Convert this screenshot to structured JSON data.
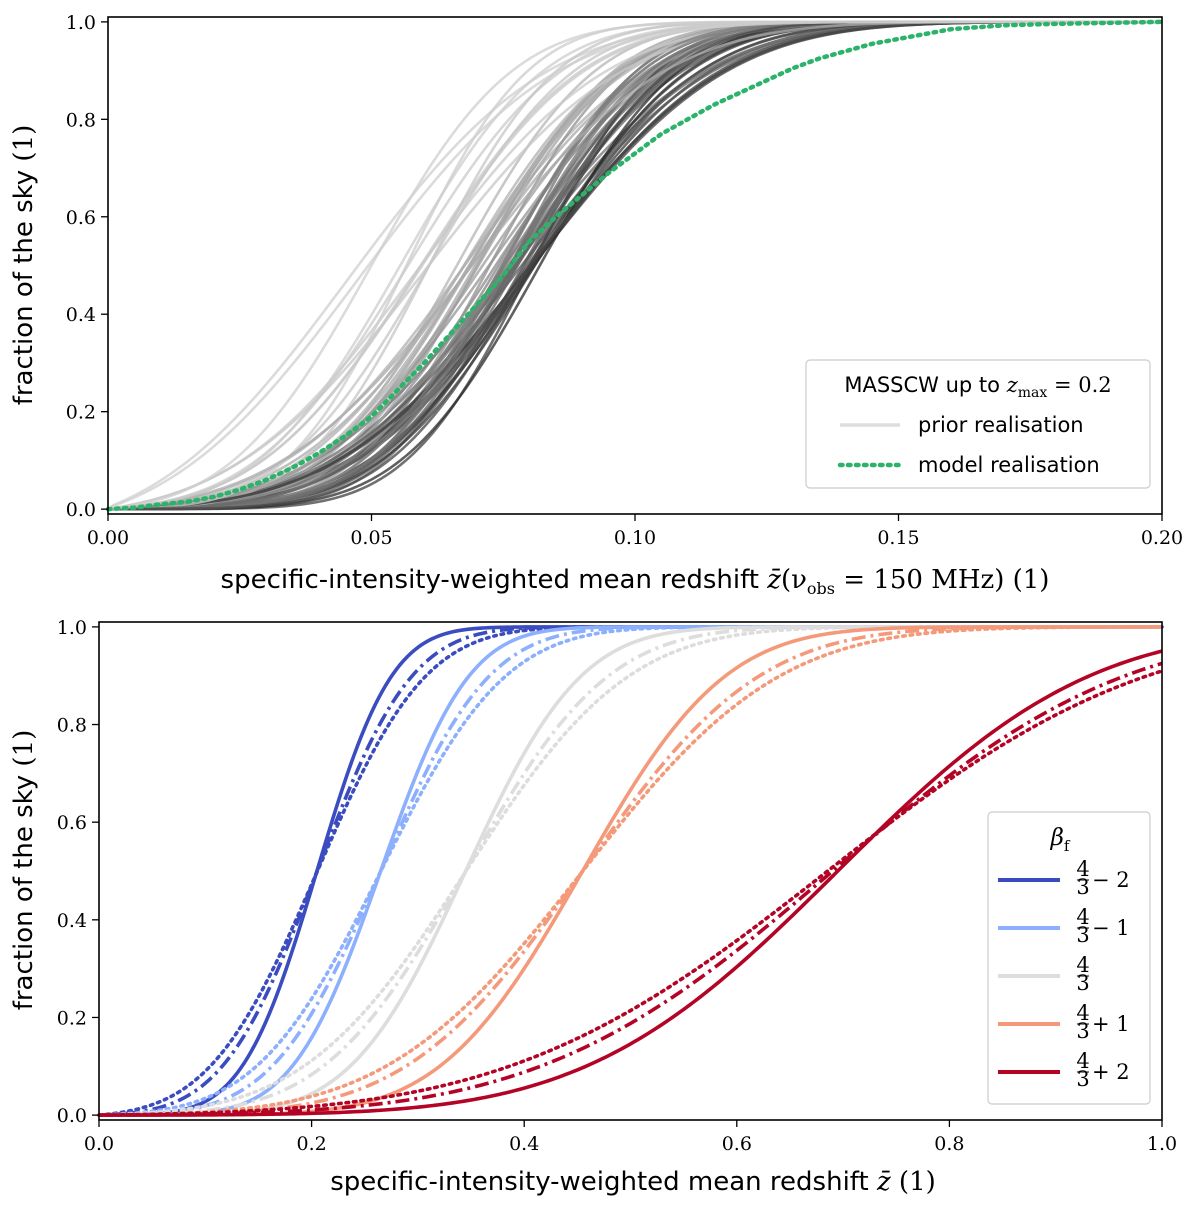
{
  "chart_data": [
    {
      "type": "line",
      "xlabel": {
        "prefix": "specific-intensity-weighted mean redshift",
        "symbol": "z̄",
        "argument": "(ν",
        "argument_sub": "obs",
        "argument_rest": " = 150 MHz)",
        "unit": "(1)"
      },
      "ylabel": {
        "text": "fraction of the sky",
        "unit": "(1)"
      },
      "xlim": [
        0.0,
        0.2
      ],
      "ylim": [
        -0.01,
        1.01
      ],
      "xticks": [
        "0.00",
        "0.05",
        "0.10",
        "0.15",
        "0.20"
      ],
      "xtick_values": [
        0.0,
        0.05,
        0.1,
        0.15,
        0.2
      ],
      "yticks": [
        "0.0",
        "0.2",
        "0.4",
        "0.6",
        "0.8",
        "1.0"
      ],
      "ytick_values": [
        0.0,
        0.2,
        0.4,
        0.6,
        0.8,
        1.0
      ],
      "legend": {
        "placement": "lower-right",
        "title_text": "MASSCW up to",
        "title_math_symbol": "z",
        "title_math_sub": "max",
        "title_math_rest": " = 0.2",
        "entries": [
          {
            "label": "prior realisation",
            "color": "#dddddd",
            "style": "solid"
          },
          {
            "label": "model realisation",
            "color": "#2bb36a",
            "style": "dotted"
          }
        ]
      },
      "prior_realisations": {
        "count": 60,
        "median_range": [
          0.045,
          0.082
        ],
        "spread_range": [
          0.018,
          0.03
        ],
        "color_light": "#cfcfcf",
        "color_dark": "#2a2a2a"
      },
      "model_realisation": {
        "color": "#2bb36a",
        "points": [
          [
            0.0,
            0.0
          ],
          [
            0.005,
            0.003
          ],
          [
            0.01,
            0.01
          ],
          [
            0.015,
            0.015
          ],
          [
            0.02,
            0.025
          ],
          [
            0.025,
            0.04
          ],
          [
            0.03,
            0.06
          ],
          [
            0.035,
            0.085
          ],
          [
            0.04,
            0.115
          ],
          [
            0.045,
            0.15
          ],
          [
            0.05,
            0.19
          ],
          [
            0.055,
            0.245
          ],
          [
            0.06,
            0.3
          ],
          [
            0.065,
            0.36
          ],
          [
            0.07,
            0.42
          ],
          [
            0.075,
            0.48
          ],
          [
            0.08,
            0.55
          ],
          [
            0.085,
            0.6
          ],
          [
            0.09,
            0.645
          ],
          [
            0.095,
            0.69
          ],
          [
            0.1,
            0.73
          ],
          [
            0.105,
            0.77
          ],
          [
            0.11,
            0.8
          ],
          [
            0.115,
            0.83
          ],
          [
            0.12,
            0.855
          ],
          [
            0.125,
            0.88
          ],
          [
            0.13,
            0.905
          ],
          [
            0.135,
            0.925
          ],
          [
            0.14,
            0.94
          ],
          [
            0.145,
            0.955
          ],
          [
            0.15,
            0.965
          ],
          [
            0.155,
            0.975
          ],
          [
            0.16,
            0.985
          ],
          [
            0.17,
            0.993
          ],
          [
            0.18,
            0.996
          ],
          [
            0.19,
            0.998
          ],
          [
            0.2,
            1.0
          ]
        ]
      }
    },
    {
      "type": "line",
      "xlabel": {
        "prefix": "specific-intensity-weighted mean redshift",
        "symbol": "z̄",
        "unit": "(1)"
      },
      "ylabel": {
        "text": "fraction of the sky",
        "unit": "(1)"
      },
      "xlim": [
        0.0,
        1.0
      ],
      "ylim": [
        -0.01,
        1.01
      ],
      "xticks": [
        "0.0",
        "0.2",
        "0.4",
        "0.6",
        "0.8",
        "1.0"
      ],
      "xtick_values": [
        0.0,
        0.2,
        0.4,
        0.6,
        0.8,
        1.0
      ],
      "yticks": [
        "0.0",
        "0.2",
        "0.4",
        "0.6",
        "0.8",
        "1.0"
      ],
      "ytick_values": [
        0.0,
        0.2,
        0.4,
        0.6,
        0.8,
        1.0
      ],
      "legend": {
        "placement": "lower-right",
        "title_symbol": "β",
        "title_sub": "f",
        "entries": [
          {
            "frac_num": "4",
            "frac_den": "3",
            "suffix": " − 2",
            "color": "#3b4cc0"
          },
          {
            "frac_num": "4",
            "frac_den": "3",
            "suffix": " − 1",
            "color": "#8db0fe"
          },
          {
            "frac_num": "4",
            "frac_den": "3",
            "suffix": "",
            "color": "#dddddd"
          },
          {
            "frac_num": "4",
            "frac_den": "3",
            "suffix": " + 1",
            "color": "#f49a7b"
          },
          {
            "frac_num": "4",
            "frac_den": "3",
            "suffix": " + 2",
            "color": "#b40426"
          }
        ]
      },
      "families": [
        {
          "color": "#3b4cc0",
          "curves": [
            {
              "style": "solid",
              "mu": 0.205,
              "sigma": 0.055
            },
            {
              "style": "dashdot",
              "mu": 0.205,
              "sigma": 0.07
            },
            {
              "style": "dotted",
              "mu": 0.205,
              "sigma": 0.08
            }
          ]
        },
        {
          "color": "#8db0fe",
          "curves": [
            {
              "style": "solid",
              "mu": 0.265,
              "sigma": 0.065
            },
            {
              "style": "dashdot",
              "mu": 0.265,
              "sigma": 0.08
            },
            {
              "style": "dotted",
              "mu": 0.265,
              "sigma": 0.092
            }
          ]
        },
        {
          "color": "#dddddd",
          "curves": [
            {
              "style": "solid",
              "mu": 0.345,
              "sigma": 0.085
            },
            {
              "style": "dashdot",
              "mu": 0.345,
              "sigma": 0.105
            },
            {
              "style": "dotted",
              "mu": 0.345,
              "sigma": 0.12
            }
          ]
        },
        {
          "color": "#f49a7b",
          "curves": [
            {
              "style": "solid",
              "mu": 0.455,
              "sigma": 0.105
            },
            {
              "style": "dashdot",
              "mu": 0.455,
              "sigma": 0.13
            },
            {
              "style": "dotted",
              "mu": 0.455,
              "sigma": 0.145
            }
          ]
        },
        {
          "color": "#b40426",
          "curves": [
            {
              "style": "solid",
              "mu": 0.695,
              "sigma": 0.185
            },
            {
              "style": "dashdot",
              "mu": 0.69,
              "sigma": 0.215
            },
            {
              "style": "dotted",
              "mu": 0.685,
              "sigma": 0.235
            }
          ]
        }
      ]
    }
  ]
}
